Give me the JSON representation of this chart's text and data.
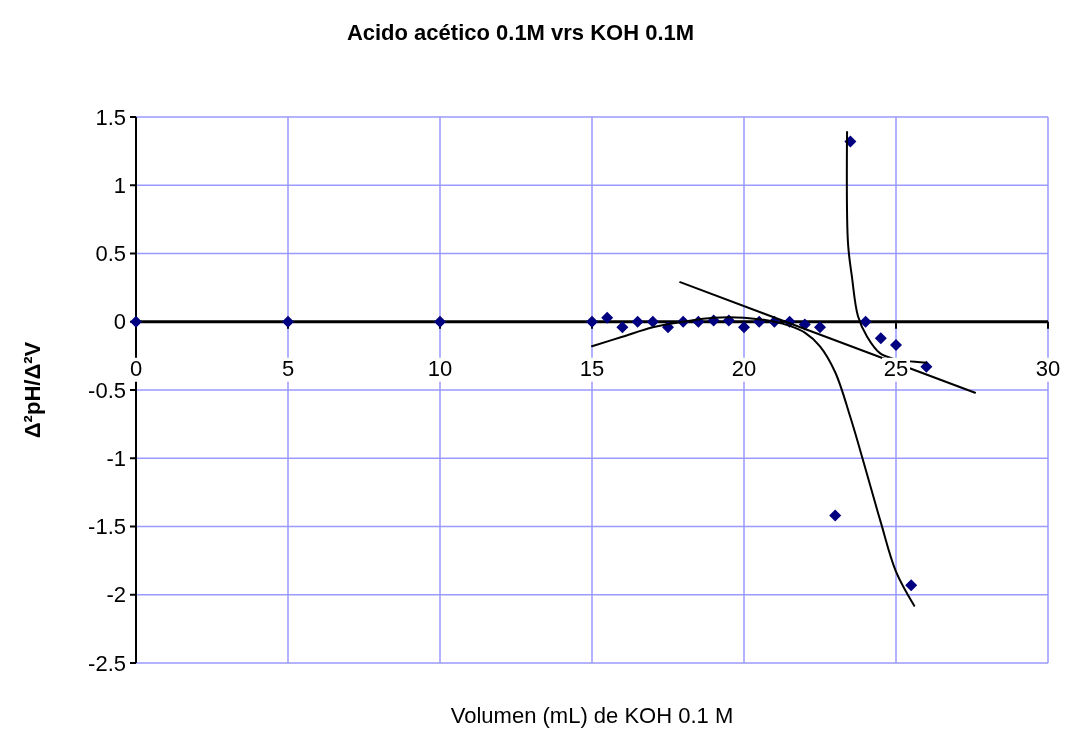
{
  "chart_data": {
    "type": "scatter",
    "title": "Acido acético 0.1M vrs KOH 0.1M",
    "xlabel": "Volumen (mL) de KOH 0.1 M",
    "ylabel": "Δ²pH/Δ²V",
    "xlim": [
      0,
      30
    ],
    "xticks": [
      0,
      5,
      10,
      15,
      20,
      25,
      30
    ],
    "ylim": [
      -2.5,
      1.5
    ],
    "yticks": [
      -2.5,
      -2,
      -1.5,
      -1,
      -0.5,
      0,
      0.5,
      1,
      1.5
    ],
    "grid": true,
    "marker": "diamond",
    "series": [
      {
        "color": "#000080",
        "x": [
          0,
          5,
          10,
          15,
          15.5,
          16,
          16.5,
          17,
          17.5,
          18,
          18.5,
          19,
          19.5,
          20,
          20.5,
          21,
          21.5,
          22,
          22.5,
          23,
          23.5,
          24,
          24.5,
          25,
          25.5,
          26
        ],
        "values": [
          0,
          0,
          0,
          0,
          0.03,
          -0.04,
          0,
          0,
          -0.04,
          0,
          0,
          0.01,
          0.01,
          -0.04,
          0,
          0,
          0,
          -0.02,
          -0.04,
          -1.42,
          1.32,
          0,
          -0.12,
          -0.17,
          -1.93,
          -0.33
        ]
      },
      {
        "type": "line",
        "color": "#000000",
        "marker": "none",
        "x": [
          17.9,
          27.6
        ],
        "values": [
          0.29,
          -0.52
        ]
      },
      {
        "type": "line",
        "color": "#000000",
        "marker": "none",
        "x": [
          15,
          16,
          17,
          18,
          19,
          20,
          21,
          21.5,
          22,
          22.5,
          23,
          23.5,
          24,
          24.5,
          25,
          25.6
        ],
        "values": [
          -0.18,
          -0.11,
          -0.04,
          0,
          0.03,
          0.03,
          0,
          -0.03,
          -0.08,
          -0.18,
          -0.37,
          -0.7,
          -1.08,
          -1.47,
          -1.83,
          -2.08
        ]
      },
      {
        "type": "line",
        "color": "#000000",
        "marker": "none",
        "x": [
          23.39,
          23.42,
          23.55,
          23.75,
          24.05,
          24.47,
          24.9,
          26
        ],
        "values": [
          1.39,
          0.58,
          0.33,
          0.04,
          -0.11,
          -0.23,
          -0.27,
          -0.3
        ]
      }
    ]
  }
}
